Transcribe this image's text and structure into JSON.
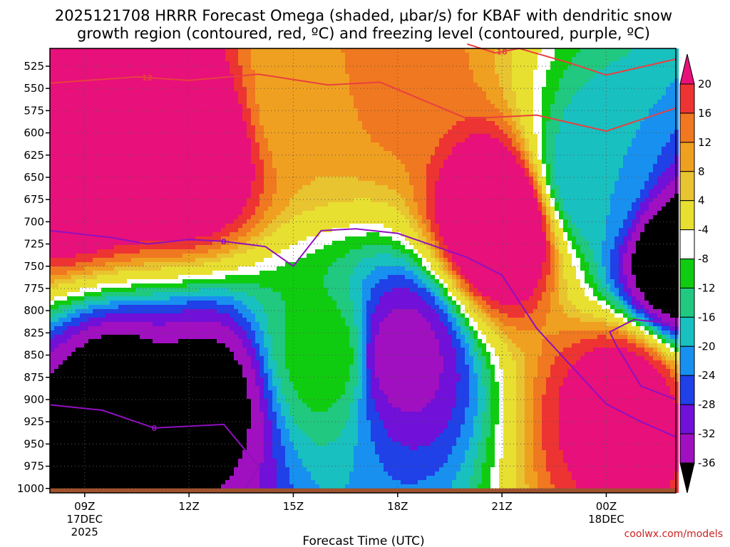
{
  "chart_data": {
    "type": "heatmap",
    "title_line1": "2025121708 HRRR Forecast Omega (shaded, μbar/s) for KBAF with dendritic snow",
    "title_line2": "growth region (contoured, red, ºC) and freezing level (contoured, purple, ºC)",
    "xlabel": "Forecast Time (UTC)",
    "watermark": "coolwx.com/models",
    "y_ticks": [
      525,
      550,
      575,
      600,
      625,
      650,
      675,
      700,
      725,
      750,
      775,
      800,
      825,
      850,
      875,
      900,
      925,
      950,
      975,
      1000
    ],
    "y_tick_labels": [
      "525",
      "550",
      "575",
      "600",
      "625",
      "650",
      "675",
      "700",
      "725",
      "750",
      "775",
      "800",
      "825",
      "850",
      "875",
      "900",
      "925",
      "950",
      "975",
      "1000"
    ],
    "ylim": [
      1005,
      505
    ],
    "xlim_hours": [
      8,
      26
    ],
    "x_ticks": [
      {
        "hour": 9,
        "line1": "09Z",
        "line2": "17DEC",
        "line3": "2025"
      },
      {
        "hour": 12,
        "line1": "12Z",
        "line2": "",
        "line3": ""
      },
      {
        "hour": 15,
        "line1": "15Z",
        "line2": "",
        "line3": ""
      },
      {
        "hour": 18,
        "line1": "18Z",
        "line2": "",
        "line3": ""
      },
      {
        "hour": 21,
        "line1": "21Z",
        "line2": "",
        "line3": ""
      },
      {
        "hour": 24,
        "line1": "00Z",
        "line2": "18DEC",
        "line3": ""
      }
    ],
    "colorbar": {
      "labels": [
        "20",
        "16",
        "12",
        "8",
        "4",
        "-4",
        "-8",
        "-12",
        "-16",
        "-20",
        "-24",
        "-28",
        "-32",
        "-36"
      ],
      "colors": [
        "#ee3333",
        "#f07820",
        "#f0a020",
        "#e8c430",
        "#e8e030",
        "#ffffff",
        "#10cc10",
        "#20c880",
        "#18c0c0",
        "#1890f0",
        "#2040e8",
        "#7010d8",
        "#a010c0",
        "#a8a8a8"
      ],
      "max_color": "#e8107a",
      "min_color": "#000000"
    },
    "omega_fields": [
      {
        "hour": 8.5,
        "pressure": 620,
        "value": 30
      },
      {
        "hour": 10,
        "pressure": 600,
        "value": 30
      },
      {
        "hour": 12,
        "pressure": 620,
        "value": 28
      },
      {
        "hour": 15.5,
        "pressure": 560,
        "value": 8
      },
      {
        "hour": 17.5,
        "pressure": 530,
        "value": 14
      },
      {
        "hour": 21,
        "pressure": 700,
        "value": 30
      },
      {
        "hour": 10,
        "pressure": 910,
        "value": -40
      },
      {
        "hour": 12.5,
        "pressure": 900,
        "value": -38
      },
      {
        "hour": 18,
        "pressure": 850,
        "value": -34
      },
      {
        "hour": 16,
        "pressure": 850,
        "value": -10
      },
      {
        "hour": 23.5,
        "pressure": 650,
        "value": -20
      },
      {
        "hour": 24.5,
        "pressure": 900,
        "value": 24
      },
      {
        "hour": 26,
        "pressure": 750,
        "value": -40
      }
    ],
    "red_contours": [
      {
        "label": "12",
        "label_hour": 10.8,
        "points": [
          [
            8,
            544
          ],
          [
            10.5,
            537
          ],
          [
            12,
            541
          ],
          [
            14,
            534
          ],
          [
            16,
            546
          ],
          [
            17.5,
            543
          ],
          [
            20,
            584
          ],
          [
            22,
            580
          ],
          [
            24,
            598
          ],
          [
            26,
            572
          ]
        ]
      },
      {
        "label": "18",
        "label_hour": 21,
        "points": [
          [
            20,
            500
          ],
          [
            20.8,
            510
          ],
          [
            21.5,
            505
          ],
          [
            23,
            522
          ],
          [
            24,
            535
          ],
          [
            26,
            517
          ]
        ]
      }
    ],
    "purple_contours": [
      {
        "label": "0",
        "label_hour": 13,
        "points": [
          [
            8,
            710
          ],
          [
            9.8,
            718
          ],
          [
            10.8,
            725
          ],
          [
            12,
            720
          ],
          [
            13,
            722
          ],
          [
            14.2,
            728
          ],
          [
            15,
            750
          ],
          [
            15.8,
            710
          ],
          [
            16.8,
            708
          ],
          [
            18,
            713
          ],
          [
            20,
            740
          ],
          [
            21,
            760
          ],
          [
            22,
            820
          ],
          [
            24,
            905
          ],
          [
            25,
            925
          ],
          [
            26,
            942
          ]
        ]
      },
      {
        "label": "0",
        "label_hour": 11,
        "points": [
          [
            8,
            906
          ],
          [
            9.5,
            912
          ],
          [
            11,
            932
          ],
          [
            13,
            928
          ],
          [
            14,
            975
          ],
          [
            13.6,
            1002
          ]
        ]
      },
      {
        "label": "",
        "label_hour": 0,
        "points": [
          [
            26,
            815
          ],
          [
            24.8,
            810
          ],
          [
            24.1,
            824
          ],
          [
            24.3,
            840
          ],
          [
            25,
            885
          ],
          [
            26,
            900
          ]
        ]
      }
    ]
  }
}
